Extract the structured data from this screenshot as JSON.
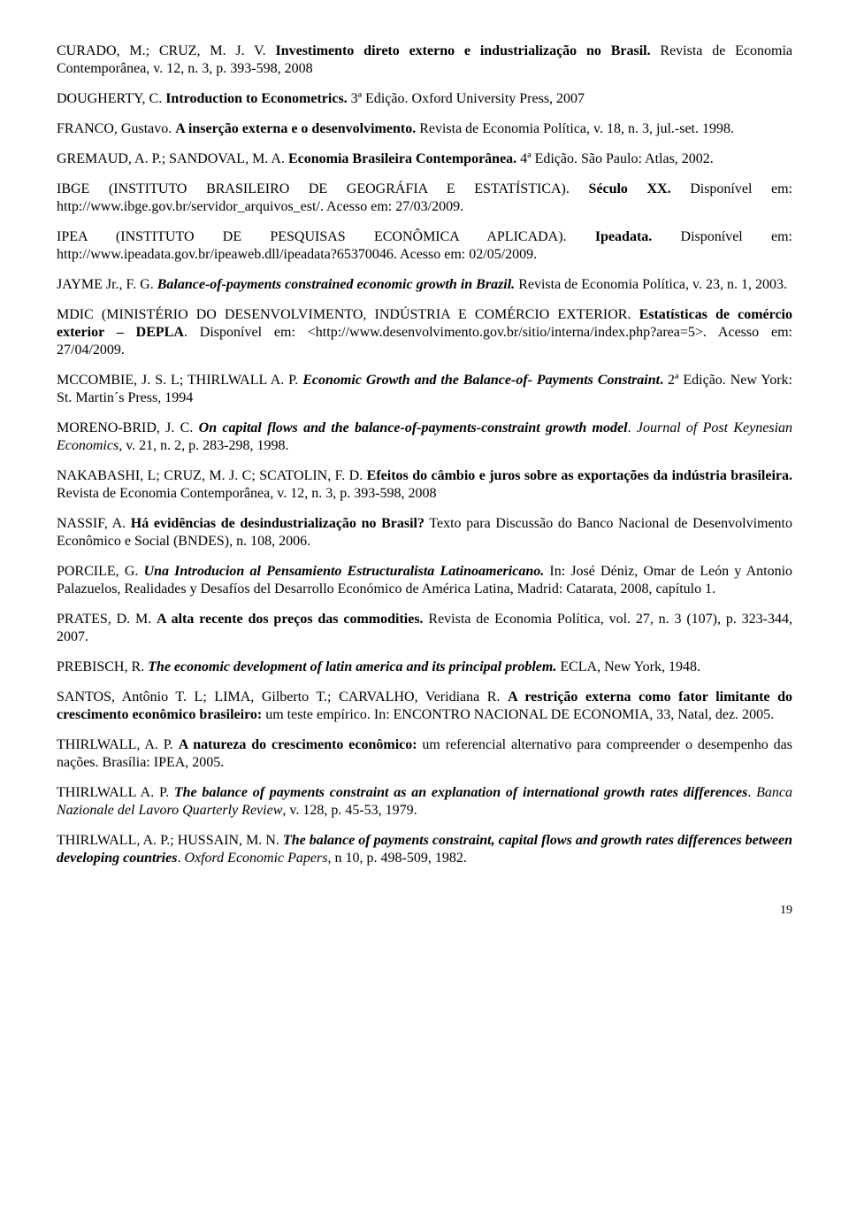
{
  "refs": [
    {
      "html": "CURADO, M.; CRUZ, M. J. V. <span class='b'>Investimento direto externo e industrialização no Brasil.</span> Revista de Economia Contemporânea, v. 12, n. 3, p. 393-598, 2008"
    },
    {
      "html": "DOUGHERTY, C. <span class='b'>Introduction to Econometrics.</span> 3ª Edição. Oxford University Press, 2007"
    },
    {
      "html": "FRANCO, Gustavo. <span class='b'>A inserção externa e o desenvolvimento.</span> Revista de Economia Política, v. 18, n. 3, jul.-set. 1998."
    },
    {
      "html": "GREMAUD, A. P.; SANDOVAL, M. A. <span class='b'>Economia Brasileira Contemporânea.</span> 4ª Edição. São Paulo: Atlas, 2002."
    },
    {
      "html": "IBGE (INSTITUTO BRASILEIRO DE GEOGRÁFIA E ESTATÍSTICA). <span class='b'>Século XX.</span> Disponível em: http://www.ibge.gov.br/servidor_arquivos_est/. Acesso em: 27/03/2009."
    },
    {
      "html": "IPEA (INSTITUTO DE PESQUISAS ECONÔMICA APLICADA). <span class='b'>Ipeadata.</span> Disponível em: http://www.ipeadata.gov.br/ipeaweb.dll/ipeadata?65370046. Acesso em: 02/05/2009."
    },
    {
      "html": "JAYME Jr., F. G. <span class='b i'>Balance-of-payments constrained economic growth in Brazil.</span> Revista de Economia Política, v. 23, n. 1, 2003."
    },
    {
      "html": "MDIC (MINISTÉRIO DO DESENVOLVIMENTO, INDÚSTRIA E COMÉRCIO EXTERIOR. <span class='b'>Estatísticas de comércio exterior – DEPLA</span>. Disponível em: &lt;http://www.desenvolvimento.gov.br/sitio/interna/index.php?area=5&gt;. Acesso em: 27/04/2009."
    },
    {
      "html": "MCCOMBIE, J. S. L; THIRLWALL A. P. <span class='b i'>Economic Growth and the Balance-of- Payments Constraint</span><span class='b'>.</span> 2ª Edição. New York: St. Martin´s Press, 1994"
    },
    {
      "html": "MORENO-BRID, J. C. <span class='b i'>On capital flows and the balance-of-payments-constraint growth model</span>. <span class='i'>Journal of Post Keynesian Economics</span>, v. 21, n. 2, p. 283-298, 1998."
    },
    {
      "html": "NAKABASHI, L; CRUZ, M. J. C; SCATOLIN, F. D. <span class='b'>Efeitos do câmbio e juros sobre as exportações da indústria brasileira.</span> Revista de Economia Contemporânea, v. 12, n. 3, p. 393-598, 2008"
    },
    {
      "html": "NASSIF, A. <span class='b'>Há evidências de desindustrialização no Brasil?</span> Texto para Discussão do Banco Nacional de Desenvolvimento Econômico e Social (BNDES), n. 108, 2006."
    },
    {
      "html": "PORCILE, G. <span class='b i'>Una Introducion al Pensamiento Estructuralista Latinoamericano.</span> In: José Déniz, Omar de León y Antonio Palazuelos, Realidades y Desafíos del Desarrollo Económico de América Latina, Madrid: Catarata, 2008, capítulo 1."
    },
    {
      "html": "PRATES, D. M. <span class='b'>A alta recente dos preços das commodities.</span> Revista de Economia Política, vol. 27, n. 3 (107), p. 323-344, 2007."
    },
    {
      "html": "PREBISCH, R. <span class='b i'>The economic development of latin america and its principal problem.</span> ECLA, New York, 1948."
    },
    {
      "html": "SANTOS, Antônio T. L; LIMA, Gilberto T.; CARVALHO, Veridiana R. <span class='b'>A restrição externa como fator limitante do crescimento econômico brasileiro:</span> um teste empírico. In: ENCONTRO NACIONAL DE ECONOMIA, 33, Natal, dez. 2005."
    },
    {
      "html": "THIRLWALL, A. P. <span class='b'>A natureza do crescimento econômico:</span> um referencial alternativo para compreender o desempenho das nações. Brasília: IPEA, 2005."
    },
    {
      "html": "THIRLWALL A. P. <span class='b i'>The balance of payments constraint as an explanation of international growth rates differences</span>. <span class='i'>Banca Nazionale del Lavoro Quarterly Review</span>, v. 128, p. 45-53, 1979."
    },
    {
      "html": "THIRLWALL, A. P.; HUSSAIN, M. N. <span class='b i'>The balance of payments constraint, capital flows and growth rates differences between developing countries</span>. <span class='i'>Oxford Economic Papers</span>, n 10, p. 498-509, 1982."
    }
  ],
  "page_number": "19"
}
